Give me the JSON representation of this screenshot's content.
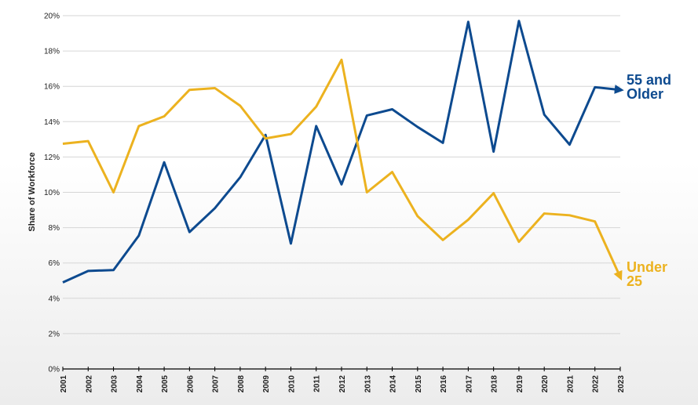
{
  "chart_data": {
    "type": "line",
    "y_label": "Share of Workforce",
    "x": [
      2001,
      2002,
      2003,
      2004,
      2005,
      2006,
      2007,
      2008,
      2009,
      2010,
      2011,
      2012,
      2013,
      2014,
      2015,
      2016,
      2017,
      2018,
      2019,
      2020,
      2021,
      2022,
      2023
    ],
    "xlim": [
      2001,
      2023
    ],
    "xticks": [
      2001,
      2002,
      2003,
      2004,
      2005,
      2006,
      2007,
      2008,
      2009,
      2010,
      2011,
      2012,
      2013,
      2014,
      2015,
      2016,
      2017,
      2018,
      2019,
      2020,
      2021,
      2022,
      2023
    ],
    "ylim": [
      0,
      20
    ],
    "yticks": [
      {
        "value": 0,
        "label": "0%"
      },
      {
        "value": 2,
        "label": "2%"
      },
      {
        "value": 4,
        "label": "4%"
      },
      {
        "value": 6,
        "label": "6%"
      },
      {
        "value": 8,
        "label": "8%"
      },
      {
        "value": 10,
        "label": "10%"
      },
      {
        "value": 12,
        "label": "12%"
      },
      {
        "value": 14,
        "label": "14%"
      },
      {
        "value": 16,
        "label": "16%"
      },
      {
        "value": 18,
        "label": "18%"
      },
      {
        "value": 20,
        "label": "20%"
      }
    ],
    "grid": true,
    "series": [
      {
        "name": "55 and Older",
        "color": "#0d4a8f",
        "values": [
          4.9,
          5.55,
          5.6,
          7.55,
          11.7,
          7.75,
          9.1,
          10.85,
          13.25,
          7.1,
          13.75,
          10.45,
          14.35,
          14.7,
          13.7,
          12.8,
          19.65,
          12.3,
          19.7,
          14.4,
          12.7,
          15.95,
          15.8
        ]
      },
      {
        "name": "Under 25",
        "color": "#ecb21f",
        "values": [
          12.75,
          12.9,
          10.0,
          13.75,
          14.3,
          15.8,
          15.9,
          14.9,
          13.05,
          13.3,
          14.85,
          17.5,
          10.0,
          11.15,
          8.65,
          7.3,
          8.45,
          9.95,
          7.2,
          8.8,
          8.7,
          8.35,
          5.2
        ]
      }
    ]
  }
}
